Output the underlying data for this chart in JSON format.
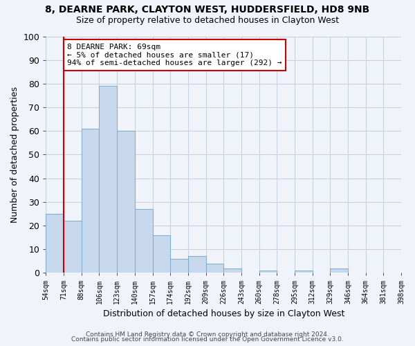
{
  "title1": "8, DEARNE PARK, CLAYTON WEST, HUDDERSFIELD, HD8 9NB",
  "title2": "Size of property relative to detached houses in Clayton West",
  "xlabel": "Distribution of detached houses by size in Clayton West",
  "ylabel": "Number of detached properties",
  "footer1": "Contains HM Land Registry data © Crown copyright and database right 2024.",
  "footer2": "Contains public sector information licensed under the Open Government Licence v3.0.",
  "annotation_line1": "8 DEARNE PARK: 69sqm",
  "annotation_line2": "← 5% of detached houses are smaller (17)",
  "annotation_line3": "94% of semi-detached houses are larger (292) →",
  "bar_values": [
    25,
    22,
    61,
    79,
    60,
    27,
    16,
    6,
    7,
    4,
    2,
    0,
    1,
    0,
    1,
    0,
    2
  ],
  "bin_labels": [
    "54sqm",
    "71sqm",
    "88sqm",
    "106sqm",
    "123sqm",
    "140sqm",
    "157sqm",
    "174sqm",
    "192sqm",
    "209sqm",
    "226sqm",
    "243sqm",
    "260sqm",
    "278sqm",
    "295sqm",
    "312sqm",
    "329sqm",
    "346sqm",
    "364sqm",
    "381sqm",
    "398sqm"
  ],
  "bar_color": "#c8d8ec",
  "bar_edge_color": "#7aabcc",
  "vline_color": "#cc0000",
  "annotation_box_color": "#cc0000",
  "ylim": [
    0,
    100
  ],
  "yticks": [
    0,
    10,
    20,
    30,
    40,
    50,
    60,
    70,
    80,
    90,
    100
  ],
  "background_color": "#f0f4fa",
  "grid_color": "#c8d0dc"
}
